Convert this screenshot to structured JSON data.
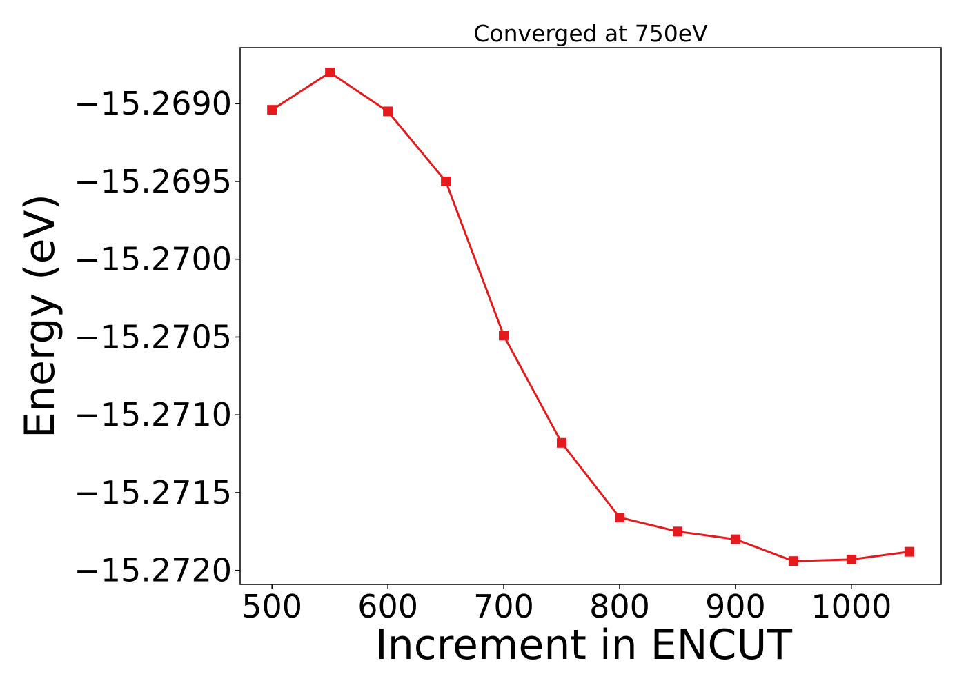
{
  "chart_data": {
    "type": "line",
    "title": "Converged at 750eV",
    "xlabel": "Increment in ENCUT",
    "ylabel": "Energy (eV)",
    "xlim": [
      472.5,
      1077.5
    ],
    "ylim": [
      -15.27209,
      -15.26864
    ],
    "x_ticks": [
      500,
      600,
      700,
      800,
      900,
      1000
    ],
    "x_tick_labels": [
      "500",
      "600",
      "700",
      "800",
      "900",
      "1000"
    ],
    "y_ticks": [
      -15.269,
      -15.2695,
      -15.27,
      -15.2705,
      -15.271,
      -15.2715,
      -15.272
    ],
    "y_tick_labels": [
      "−15.2690",
      "−15.2695",
      "−15.2700",
      "−15.2705",
      "−15.2710",
      "−15.2715",
      "−15.2720"
    ],
    "grid": false,
    "series": [
      {
        "color": "#e41a1c",
        "marker": "square",
        "x": [
          500,
          550,
          600,
          650,
          700,
          750,
          800,
          850,
          900,
          950,
          1000,
          1050
        ],
        "y": [
          -15.26904,
          -15.2688,
          -15.26905,
          -15.2695,
          -15.27049,
          -15.27118,
          -15.27166,
          -15.27175,
          -15.2718,
          -15.27194,
          -15.27193,
          -15.27188
        ]
      }
    ]
  }
}
